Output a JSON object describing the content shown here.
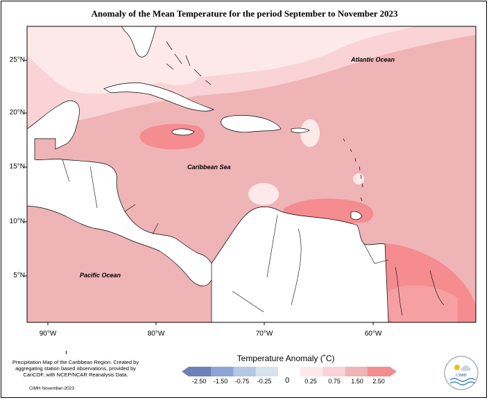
{
  "title": "Anomaly of the Mean Temperature for the period September to November 2023",
  "map": {
    "lat_ticks": [
      "25°N",
      "20°N",
      "15°N",
      "10°N",
      "5°N"
    ],
    "lon_ticks": [
      "90°W",
      "80°W",
      "70°W",
      "60°W"
    ],
    "ocean_labels": {
      "atlantic": "Atlantic Ocean",
      "caribbean": "Caribbean Sea",
      "pacific": "Pacific Ocean"
    },
    "colors": {
      "land": "#ffffff",
      "anomaly_0_25": "#fde8ea",
      "anomaly_0_75": "#f9d3d6",
      "anomaly_1_50": "#efb4b6",
      "anomaly_2_50": "#f48c90"
    }
  },
  "legend": {
    "title": "Temperature Anomaly (˚C)",
    "ticks": [
      "-2.50",
      "-1.50",
      "-0.75",
      "-0.25",
      "0",
      "0.25",
      "0.75",
      "1.50",
      "2.50"
    ],
    "colors": [
      "#6f7fb8",
      "#8fa3d4",
      "#b5c7e6",
      "#d4e3ec",
      "#ffffff",
      "#fde8ea",
      "#f9d3d6",
      "#efb4b6",
      "#f48c90"
    ]
  },
  "credits": {
    "text": "Precipitation Map of the Caribbean Region. Created by aggregating station based observations, provided by CariCOF, with NCEP/NCAR Reanalysis Data.",
    "date": "CIMH November-2023"
  },
  "logo": {
    "name": "CIMH"
  }
}
